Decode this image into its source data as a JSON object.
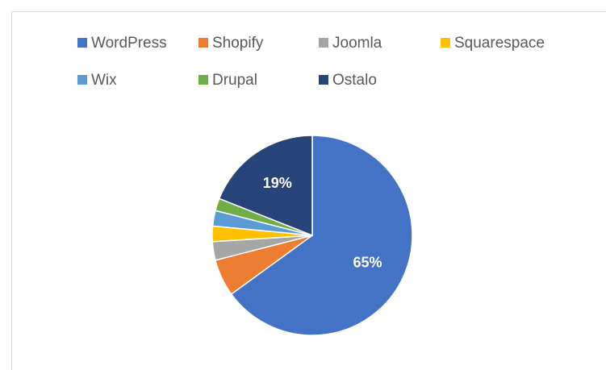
{
  "chart_data": {
    "type": "pie",
    "categories": [
      "WordPress",
      "Shopify",
      "Joomla",
      "Squarespace",
      "Wix",
      "Drupal",
      "Ostalo"
    ],
    "values": [
      65,
      6,
      3,
      2.5,
      2.5,
      2,
      19
    ],
    "value_labels": [
      "65%",
      null,
      null,
      null,
      null,
      null,
      "19%"
    ],
    "colors": [
      "#4472c4",
      "#ed7d31",
      "#a5a5a5",
      "#ffc000",
      "#5b9bd5",
      "#70ad47",
      "#264478"
    ],
    "legend": "top"
  }
}
